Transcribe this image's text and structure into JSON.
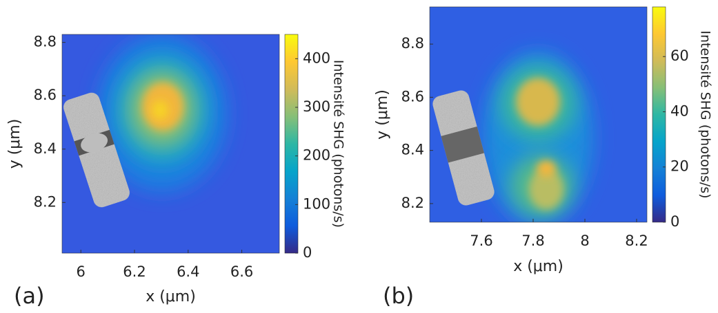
{
  "chart_data": [
    {
      "type": "heatmap",
      "panel_label": "(a)",
      "xlabel": "x (μm)",
      "ylabel": "y (μm)",
      "colorbar_label": "Intensité SHG (photons/s)",
      "colormap": "parula",
      "xlim": [
        5.93,
        6.74
      ],
      "xticks": [
        6,
        6.2,
        6.4,
        6.6
      ],
      "ylim": [
        8.01,
        8.83
      ],
      "yticks": [
        8.2,
        8.4,
        8.6,
        8.8
      ],
      "clim": [
        0,
        450
      ],
      "cticks": [
        0,
        100,
        200,
        300,
        400
      ]
    },
    {
      "type": "heatmap",
      "panel_label": "(b)",
      "xlabel": "x (μm)",
      "ylabel": "y (μm)",
      "colorbar_label": "Intensité SHG (photons/s)",
      "colormap": "parula",
      "xlim": [
        7.4,
        8.24
      ],
      "xticks": [
        7.6,
        7.8,
        8,
        8.2
      ],
      "ylim": [
        8.13,
        8.94
      ],
      "yticks": [
        8.2,
        8.4,
        8.6,
        8.8
      ],
      "clim": [
        0,
        78
      ],
      "cticks": [
        0,
        20,
        40,
        60
      ]
    }
  ]
}
